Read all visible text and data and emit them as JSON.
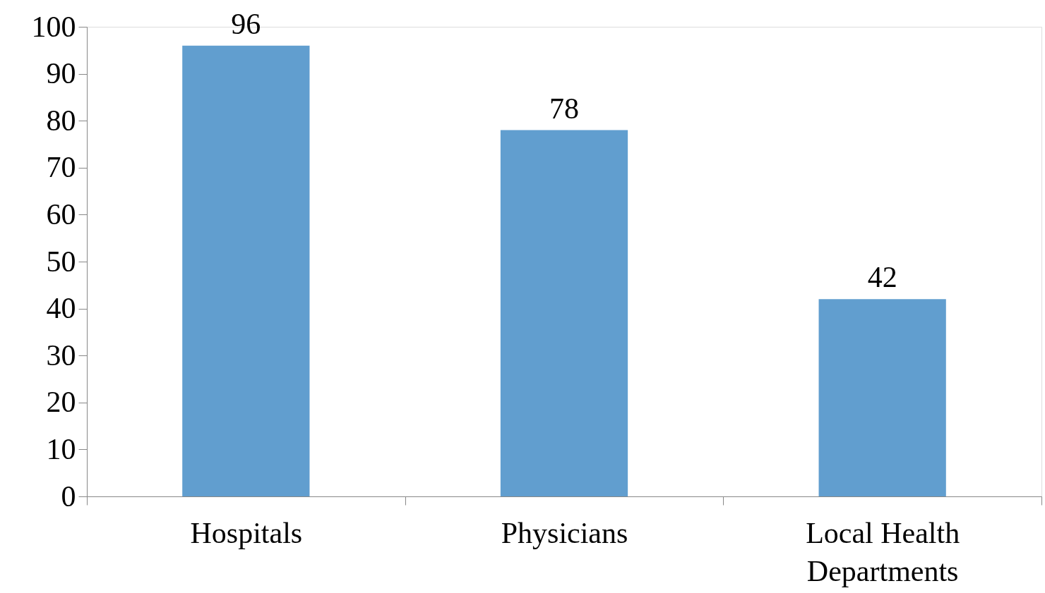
{
  "chart_data": {
    "type": "bar",
    "categories": [
      "Hospitals",
      "Physicians",
      "Local Health Departments"
    ],
    "values": [
      96,
      78,
      42
    ],
    "color": "#619ecf",
    "ylim": [
      0,
      100
    ],
    "yticks": [
      0,
      10,
      20,
      30,
      40,
      50,
      60,
      70,
      80,
      90,
      100
    ],
    "data_labels": true,
    "grid": false
  }
}
